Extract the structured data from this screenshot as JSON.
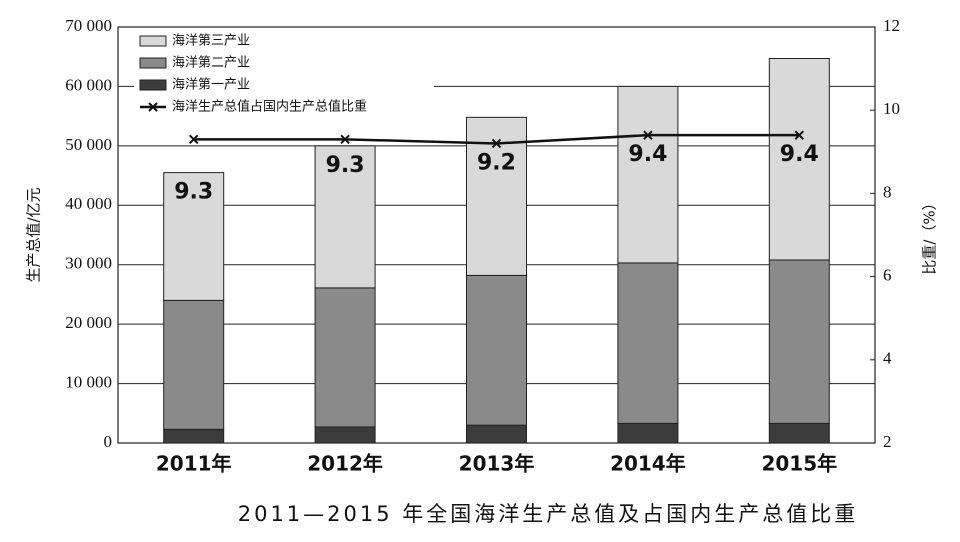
{
  "chart_data": {
    "type": "bar",
    "stacked": true,
    "title": "2011—2015 年全国海洋生产总值及占国内生产总值比重",
    "y_label": "生产总值/亿元",
    "y2_label": "比重/（%）",
    "categories": [
      "2011年",
      "2012年",
      "2013年",
      "2014年",
      "2015年"
    ],
    "series": [
      {
        "name": "海洋第一产业",
        "color": "#3c3c3c",
        "values": [
          2300,
          2700,
          3000,
          3300,
          3300
        ]
      },
      {
        "name": "海洋第二产业",
        "color": "#8a8a8a",
        "values": [
          21700,
          23400,
          25200,
          27000,
          27500
        ]
      },
      {
        "name": "海洋第三产业",
        "color": "#d9d9d9",
        "values": [
          21500,
          23900,
          26600,
          29700,
          33900
        ]
      },
      {
        "name": "海洋生产总值占国内生产总值比重",
        "type": "line",
        "axis": "y2",
        "color": "#111111",
        "values": [
          9.3,
          9.3,
          9.2,
          9.4,
          9.4
        ]
      }
    ],
    "ylim": [
      0,
      70000
    ],
    "yticks": [
      0,
      {
        "value": 10000,
        "label": "10 000"
      },
      {
        "value": 20000,
        "label": "20 000"
      },
      {
        "value": 30000,
        "label": "30 000"
      },
      {
        "value": 40000,
        "label": "40 000"
      },
      {
        "value": 50000,
        "label": "50 000"
      },
      {
        "value": 60000,
        "label": "60 000"
      },
      {
        "value": 70000,
        "label": "70 000"
      }
    ],
    "y2lim": [
      2,
      12
    ],
    "y2ticks": [
      2,
      4,
      6,
      8,
      10,
      12
    ],
    "grid": true
  }
}
